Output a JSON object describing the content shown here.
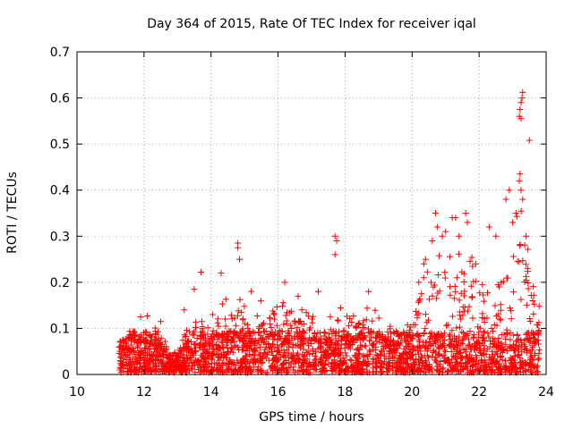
{
  "chart_data": {
    "type": "scatter",
    "title": "Day 364 of 2015, Rate Of TEC Index for receiver iqal",
    "xlabel": "GPS time / hours",
    "ylabel": "ROTI / TECUs",
    "xlim": [
      10,
      24
    ],
    "ylim": [
      0,
      0.7
    ],
    "xticks": [
      10,
      12,
      14,
      16,
      18,
      20,
      22,
      24
    ],
    "yticks": [
      0,
      0.1,
      0.2,
      0.3,
      0.4,
      0.5,
      0.6,
      0.7
    ],
    "xtick_labels": [
      "10",
      "12",
      "14",
      "16",
      "18",
      "20",
      "22",
      "24"
    ],
    "ytick_labels": [
      "0",
      "0.1",
      "0.2",
      "0.3",
      "0.4",
      "0.5",
      "0.6",
      "0.7"
    ],
    "grid": true,
    "marker": "+",
    "color": "#ff0000",
    "sampling": {
      "x_start": 11.25,
      "x_end": 23.8,
      "envelope_x": [
        11.25,
        11.5,
        11.8,
        12.0,
        12.3,
        12.6,
        12.8,
        13.0,
        13.3,
        13.6,
        13.9,
        14.2,
        14.5,
        14.8,
        15.1,
        15.4,
        15.7,
        16.0,
        16.3,
        16.6,
        16.9,
        17.2,
        17.5,
        17.8,
        18.1,
        18.4,
        18.7,
        19.0,
        19.3,
        19.6,
        19.9,
        20.2,
        20.5,
        20.8,
        21.1,
        21.4,
        21.7,
        22.0,
        22.3,
        22.6,
        22.9,
        23.2,
        23.5,
        23.8
      ],
      "envelope_y": [
        0.07,
        0.09,
        0.11,
        0.1,
        0.1,
        0.08,
        0.05,
        0.04,
        0.1,
        0.13,
        0.12,
        0.14,
        0.17,
        0.16,
        0.14,
        0.15,
        0.18,
        0.16,
        0.14,
        0.15,
        0.13,
        0.12,
        0.12,
        0.15,
        0.13,
        0.12,
        0.15,
        0.13,
        0.1,
        0.1,
        0.12,
        0.2,
        0.24,
        0.3,
        0.28,
        0.25,
        0.27,
        0.2,
        0.18,
        0.2,
        0.3,
        0.38,
        0.28,
        0.15
      ]
    },
    "highlight_points": [
      {
        "x": 11.3,
        "y": 0.072
      },
      {
        "x": 11.9,
        "y": 0.125
      },
      {
        "x": 12.1,
        "y": 0.127
      },
      {
        "x": 12.5,
        "y": 0.115
      },
      {
        "x": 13.2,
        "y": 0.14
      },
      {
        "x": 13.5,
        "y": 0.185
      },
      {
        "x": 13.7,
        "y": 0.222
      },
      {
        "x": 14.3,
        "y": 0.22
      },
      {
        "x": 14.8,
        "y": 0.285
      },
      {
        "x": 14.8,
        "y": 0.275
      },
      {
        "x": 14.85,
        "y": 0.25
      },
      {
        "x": 15.2,
        "y": 0.18
      },
      {
        "x": 16.2,
        "y": 0.2
      },
      {
        "x": 16.6,
        "y": 0.17
      },
      {
        "x": 17.2,
        "y": 0.18
      },
      {
        "x": 17.7,
        "y": 0.3
      },
      {
        "x": 17.75,
        "y": 0.29
      },
      {
        "x": 17.7,
        "y": 0.26
      },
      {
        "x": 18.7,
        "y": 0.18
      },
      {
        "x": 20.2,
        "y": 0.2
      },
      {
        "x": 20.35,
        "y": 0.24
      },
      {
        "x": 20.4,
        "y": 0.25
      },
      {
        "x": 20.6,
        "y": 0.29
      },
      {
        "x": 20.7,
        "y": 0.35
      },
      {
        "x": 20.75,
        "y": 0.32
      },
      {
        "x": 20.9,
        "y": 0.3
      },
      {
        "x": 21.0,
        "y": 0.31
      },
      {
        "x": 21.2,
        "y": 0.34
      },
      {
        "x": 21.3,
        "y": 0.34
      },
      {
        "x": 21.4,
        "y": 0.3
      },
      {
        "x": 21.6,
        "y": 0.35
      },
      {
        "x": 21.65,
        "y": 0.33
      },
      {
        "x": 21.9,
        "y": 0.24
      },
      {
        "x": 22.3,
        "y": 0.32
      },
      {
        "x": 22.5,
        "y": 0.3
      },
      {
        "x": 22.6,
        "y": 0.19
      },
      {
        "x": 22.8,
        "y": 0.38
      },
      {
        "x": 22.9,
        "y": 0.4
      },
      {
        "x": 23.0,
        "y": 0.33
      },
      {
        "x": 23.1,
        "y": 0.35
      },
      {
        "x": 23.2,
        "y": 0.42
      },
      {
        "x": 23.22,
        "y": 0.435
      },
      {
        "x": 23.25,
        "y": 0.4
      },
      {
        "x": 23.3,
        "y": 0.38
      },
      {
        "x": 23.2,
        "y": 0.56
      },
      {
        "x": 23.25,
        "y": 0.59
      },
      {
        "x": 23.3,
        "y": 0.612
      },
      {
        "x": 23.28,
        "y": 0.6
      },
      {
        "x": 23.22,
        "y": 0.575
      },
      {
        "x": 23.25,
        "y": 0.555
      },
      {
        "x": 23.5,
        "y": 0.508
      },
      {
        "x": 23.4,
        "y": 0.3
      },
      {
        "x": 23.45,
        "y": 0.23
      },
      {
        "x": 23.6,
        "y": 0.16
      }
    ]
  }
}
